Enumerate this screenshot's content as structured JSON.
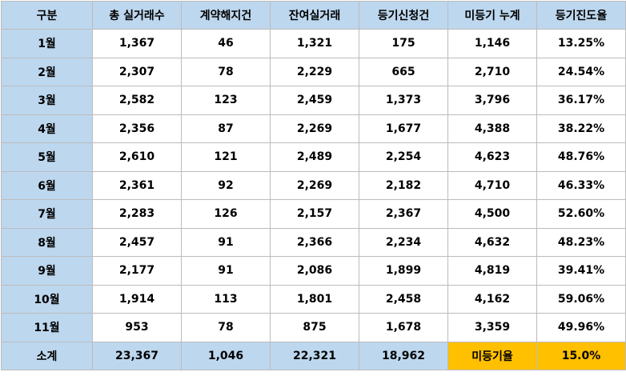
{
  "headers": [
    "구분",
    "총 실거래수",
    "계약해지건",
    "잔여실거래",
    "등기신청건",
    "미등기 누계",
    "등기진도율"
  ],
  "rows": [
    {
      "label": "1월",
      "values": [
        "1,367",
        "46",
        "1,321",
        "175",
        "1,146",
        "13.25%"
      ]
    },
    {
      "label": "2월",
      "values": [
        "2,307",
        "78",
        "2,229",
        "665",
        "2,710",
        "24.54%"
      ]
    },
    {
      "label": "3월",
      "values": [
        "2,582",
        "123",
        "2,459",
        "1,373",
        "3,796",
        "36.17%"
      ]
    },
    {
      "label": "4월",
      "values": [
        "2,356",
        "87",
        "2,269",
        "1,677",
        "4,388",
        "38.22%"
      ]
    },
    {
      "label": "5월",
      "values": [
        "2,610",
        "121",
        "2,489",
        "2,254",
        "4,623",
        "48.76%"
      ]
    },
    {
      "label": "6월",
      "values": [
        "2,361",
        "92",
        "2,269",
        "2,182",
        "4,710",
        "46.33%"
      ]
    },
    {
      "label": "7월",
      "values": [
        "2,283",
        "126",
        "2,157",
        "2,367",
        "4,500",
        "52.60%"
      ]
    },
    {
      "label": "8월",
      "values": [
        "2,457",
        "91",
        "2,366",
        "2,234",
        "4,632",
        "48.23%"
      ]
    },
    {
      "label": "9월",
      "values": [
        "2,177",
        "91",
        "2,086",
        "1,899",
        "4,819",
        "39.41%"
      ]
    },
    {
      "label": "10월",
      "values": [
        "1,914",
        "113",
        "1,801",
        "2,458",
        "4,162",
        "59.06%"
      ]
    },
    {
      "label": "11월",
      "values": [
        "953",
        "78",
        "875",
        "1,678",
        "3,359",
        "49.96%"
      ]
    }
  ],
  "total": {
    "label": "소계",
    "values": [
      "23,367",
      "1,046",
      "22,321",
      "18,962"
    ],
    "unregistered_rate_label": "미등기율",
    "unregistered_rate_value": "15.0%"
  },
  "colors": {
    "header_bg": "#bdd7ee",
    "highlight_bg": "#ffc000",
    "border": "#bcbcbc"
  }
}
